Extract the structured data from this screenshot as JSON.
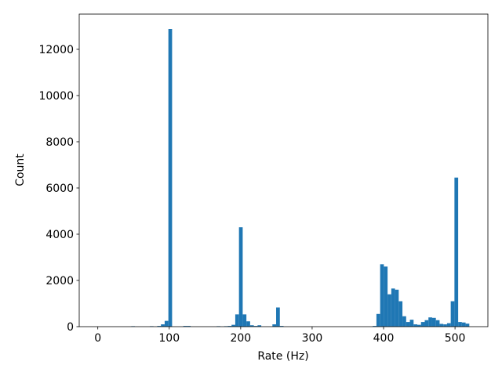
{
  "chart_data": {
    "type": "histogram",
    "x_label": "Rate (Hz)",
    "y_label": "Count",
    "color": "#1f77b4",
    "bins": [
      0,
      5.2,
      10.4,
      15.6,
      20.8,
      26,
      31.2,
      36.4,
      41.6,
      46.8,
      52,
      57.2,
      62.4,
      67.6,
      72.8,
      78,
      83.2,
      88.4,
      93.6,
      98.8,
      104,
      109.2,
      114.4,
      119.6,
      124.8,
      130,
      135.2,
      140.4,
      145.6,
      150.8,
      156,
      161.2,
      166.4,
      171.6,
      176.8,
      182,
      187.2,
      192.4,
      197.6,
      202.8,
      208,
      213.2,
      218.4,
      223.6,
      228.8,
      234,
      239.2,
      244.4,
      249.6,
      254.8,
      260,
      265.2,
      270.4,
      275.6,
      280.8,
      286,
      291.2,
      296.4,
      301.6,
      306.8,
      312,
      317.2,
      322.4,
      327.6,
      332.8,
      338,
      343.2,
      348.4,
      353.6,
      358.8,
      364,
      369.2,
      374.4,
      379.6,
      384.8,
      390,
      395.2,
      400.4,
      405.6,
      410.8,
      416,
      421.2,
      426.4,
      431.6,
      436.8,
      442,
      447.2,
      452.4,
      457.6,
      462.8,
      468,
      473.2,
      478.4,
      483.6,
      488.8,
      494,
      499.2,
      504.4,
      509.6,
      514.8,
      520
    ],
    "values": [
      0,
      0,
      0,
      0,
      0,
      0,
      0,
      0,
      0,
      20,
      0,
      0,
      0,
      0,
      20,
      0,
      30,
      100,
      250,
      12880,
      0,
      0,
      0,
      30,
      30,
      0,
      0,
      0,
      0,
      0,
      0,
      0,
      20,
      0,
      20,
      30,
      80,
      530,
      4300,
      530,
      230,
      60,
      30,
      60,
      0,
      0,
      0,
      100,
      830,
      30,
      0,
      0,
      0,
      0,
      0,
      0,
      0,
      0,
      0,
      0,
      0,
      0,
      0,
      0,
      0,
      0,
      0,
      0,
      0,
      0,
      0,
      0,
      0,
      0,
      30,
      550,
      2700,
      2600,
      1400,
      1650,
      1600,
      1100,
      450,
      200,
      300,
      100,
      80,
      200,
      280,
      400,
      380,
      280,
      120,
      100,
      150,
      1100,
      6450,
      200,
      180,
      130
    ],
    "xlim": [
      -26,
      546
    ],
    "ylim": [
      0,
      13524
    ],
    "xticks": [
      0,
      100,
      200,
      300,
      400,
      500
    ],
    "yticks": [
      0,
      2000,
      4000,
      6000,
      8000,
      10000,
      12000
    ]
  }
}
